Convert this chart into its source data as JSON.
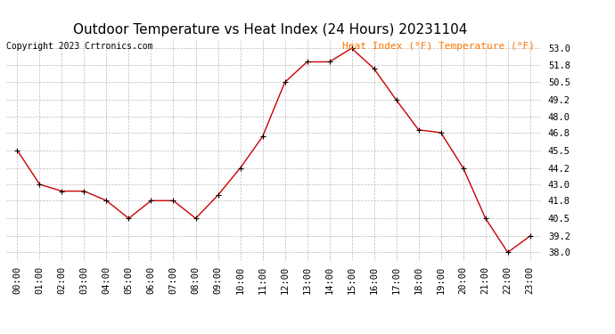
{
  "title": "Outdoor Temperature vs Heat Index (24 Hours) 20231104",
  "copyright": "Copyright 2023 Crtronics.com",
  "legend_text": "Heat Index (°F) Temperature (°F)",
  "hours": [
    "00:00",
    "01:00",
    "02:00",
    "03:00",
    "04:00",
    "05:00",
    "06:00",
    "07:00",
    "08:00",
    "09:00",
    "10:00",
    "11:00",
    "12:00",
    "13:00",
    "14:00",
    "15:00",
    "16:00",
    "17:00",
    "18:00",
    "19:00",
    "20:00",
    "21:00",
    "22:00",
    "23:00"
  ],
  "temperature": [
    45.5,
    43.0,
    42.5,
    42.5,
    41.8,
    40.5,
    41.8,
    41.8,
    40.5,
    42.2,
    44.2,
    46.5,
    50.5,
    52.0,
    52.0,
    53.0,
    51.5,
    49.2,
    47.0,
    46.8,
    44.2,
    40.5,
    38.0,
    39.2
  ],
  "line_color": "#cc0000",
  "marker": "+",
  "marker_color": "#000000",
  "bg_color": "#ffffff",
  "grid_color": "#bbbbbb",
  "yticks": [
    38.0,
    39.2,
    40.5,
    41.8,
    43.0,
    44.2,
    45.5,
    46.8,
    48.0,
    49.2,
    50.5,
    51.8,
    53.0
  ],
  "ylim_min": 37.4,
  "ylim_max": 53.6,
  "title_fontsize": 11,
  "tick_fontsize": 7.5,
  "legend_fontsize": 8,
  "copyright_fontsize": 7
}
